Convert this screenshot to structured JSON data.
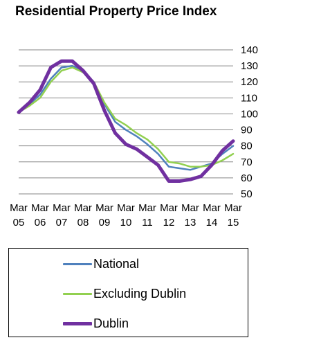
{
  "chart_data": {
    "type": "line",
    "title": "Residential Property Price Index",
    "xlabel": "",
    "ylabel": "",
    "ylim": [
      50,
      140
    ],
    "yticks": [
      50,
      60,
      70,
      80,
      90,
      100,
      110,
      120,
      130,
      140
    ],
    "x_tick_labels": [
      {
        "top": "Mar",
        "bottom": "05",
        "x": 2005.0
      },
      {
        "top": "Mar",
        "bottom": "06",
        "x": 2006.0
      },
      {
        "top": "Mar",
        "bottom": "07",
        "x": 2007.0
      },
      {
        "top": "Mar",
        "bottom": "08",
        "x": 2008.0
      },
      {
        "top": "Mar",
        "bottom": "09",
        "x": 2009.0
      },
      {
        "top": "Mar",
        "bottom": "10",
        "x": 2010.0
      },
      {
        "top": "Mar",
        "bottom": "11",
        "x": 2011.0
      },
      {
        "top": "Mar",
        "bottom": "12",
        "x": 2012.0
      },
      {
        "top": "Mar",
        "bottom": "13",
        "x": 2013.0
      },
      {
        "top": "Mar",
        "bottom": "14",
        "x": 2014.0
      },
      {
        "top": "Mar",
        "bottom": "15",
        "x": 2015.0
      }
    ],
    "grid": true,
    "legend_position": "bottom",
    "x": [
      2005.0,
      2005.5,
      2006.0,
      2006.5,
      2007.0,
      2007.5,
      2008.0,
      2008.5,
      2009.0,
      2009.5,
      2010.0,
      2010.5,
      2011.0,
      2011.5,
      2012.0,
      2012.5,
      2013.0,
      2013.5,
      2014.0,
      2014.5,
      2015.0
    ],
    "series": [
      {
        "name": "National",
        "color": "#4f81bd",
        "width": 2.5,
        "values": [
          101,
          106,
          112,
          122,
          129,
          130,
          127,
          120,
          106,
          95,
          90,
          86,
          81,
          75,
          67,
          66,
          65,
          67,
          69,
          75,
          80
        ]
      },
      {
        "name": "Excluding Dublin",
        "color": "#92d050",
        "width": 2.5,
        "values": [
          101,
          105,
          110,
          120,
          127,
          129,
          126,
          120,
          107,
          97,
          93,
          88,
          84,
          78,
          70,
          69,
          67,
          67,
          68,
          71,
          75
        ]
      },
      {
        "name": "Dublin",
        "color": "#7030a0",
        "width": 5,
        "values": [
          101,
          107,
          115,
          129,
          133,
          133,
          127,
          119,
          102,
          88,
          81,
          78,
          73,
          68,
          58,
          58,
          59,
          61,
          68,
          77,
          83
        ]
      }
    ]
  }
}
